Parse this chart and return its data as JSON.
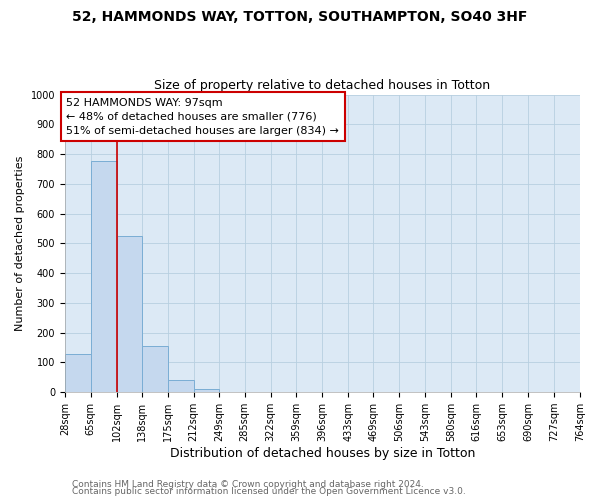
{
  "title": "52, HAMMONDS WAY, TOTTON, SOUTHAMPTON, SO40 3HF",
  "subtitle": "Size of property relative to detached houses in Totton",
  "xlabel": "Distribution of detached houses by size in Totton",
  "ylabel": "Number of detached properties",
  "bar_color": "#c5d8ee",
  "bar_edge_color": "#7aadd4",
  "plot_bg_color": "#dce9f5",
  "background_color": "#ffffff",
  "grid_color": "#b8cfe0",
  "bin_edges": [
    28,
    65,
    102,
    138,
    175,
    212,
    249,
    285,
    322,
    359,
    396,
    433,
    469,
    506,
    543,
    580,
    616,
    653,
    690,
    727,
    764
  ],
  "bin_labels": [
    "28sqm",
    "65sqm",
    "102sqm",
    "138sqm",
    "175sqm",
    "212sqm",
    "249sqm",
    "285sqm",
    "322sqm",
    "359sqm",
    "396sqm",
    "433sqm",
    "469sqm",
    "506sqm",
    "543sqm",
    "580sqm",
    "616sqm",
    "653sqm",
    "690sqm",
    "727sqm",
    "764sqm"
  ],
  "counts": [
    130,
    776,
    524,
    156,
    40,
    10,
    0,
    0,
    0,
    0,
    0,
    0,
    0,
    0,
    0,
    0,
    0,
    0,
    0,
    0
  ],
  "property_line_x": 102,
  "vline_color": "#cc0000",
  "annotation_line1": "52 HAMMONDS WAY: 97sqm",
  "annotation_line2": "← 48% of detached houses are smaller (776)",
  "annotation_line3": "51% of semi-detached houses are larger (834) →",
  "annotation_box_color": "#ffffff",
  "annotation_box_edge_color": "#cc0000",
  "ylim": [
    0,
    1000
  ],
  "yticks": [
    0,
    100,
    200,
    300,
    400,
    500,
    600,
    700,
    800,
    900,
    1000
  ],
  "footer_line1": "Contains HM Land Registry data © Crown copyright and database right 2024.",
  "footer_line2": "Contains public sector information licensed under the Open Government Licence v3.0.",
  "title_fontsize": 10,
  "subtitle_fontsize": 9,
  "xlabel_fontsize": 9,
  "ylabel_fontsize": 8,
  "tick_fontsize": 7,
  "annotation_fontsize": 8,
  "footer_fontsize": 6.5
}
